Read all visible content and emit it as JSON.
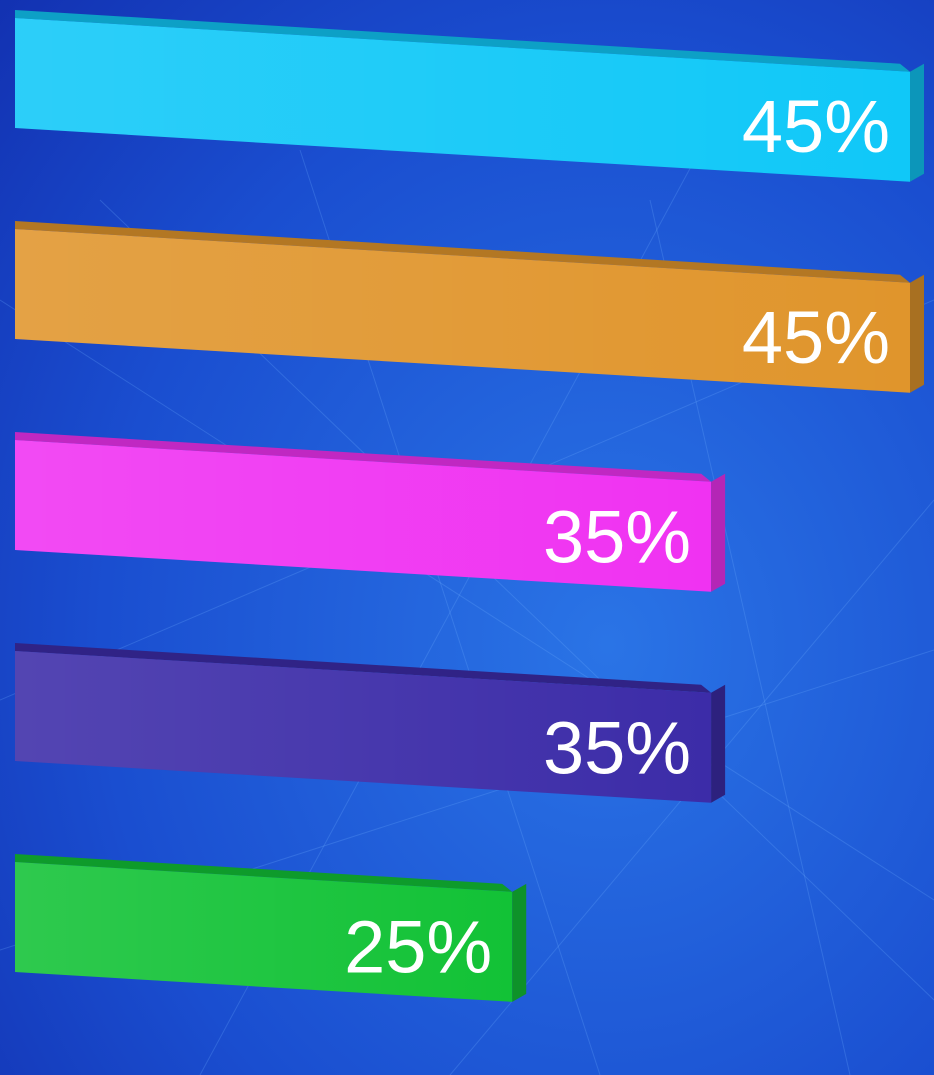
{
  "chart_data": {
    "type": "bar",
    "orientation": "horizontal",
    "values": [
      45,
      45,
      35,
      35,
      25
    ],
    "value_labels": [
      "45%",
      "45%",
      "35%",
      "35%",
      "25%"
    ],
    "colors": [
      "#10c8f8",
      "#e0952c",
      "#f032f2",
      "#3c2ca8",
      "#12c236"
    ]
  }
}
